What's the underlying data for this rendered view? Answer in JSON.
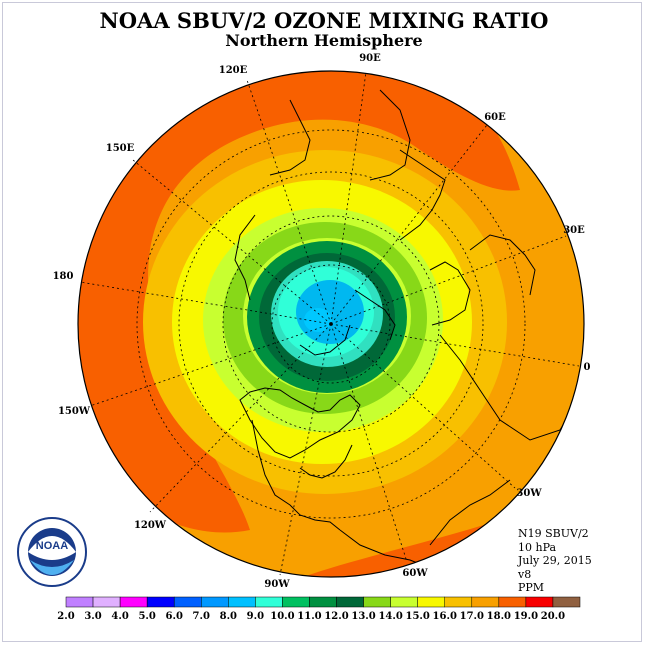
{
  "header": {
    "title": "NOAA SBUV/2 OZONE MIXING RATIO",
    "subtitle": "Northern Hemisphere"
  },
  "map": {
    "projection": "north polar stereographic",
    "longitude_labels": [
      {
        "label": "90E"
      },
      {
        "label": "60E"
      },
      {
        "label": "30E"
      },
      {
        "label": "0"
      },
      {
        "label": "30W"
      },
      {
        "label": "60W"
      },
      {
        "label": "90W"
      },
      {
        "label": "120W"
      },
      {
        "label": "150W"
      },
      {
        "label": "180"
      },
      {
        "label": "150E"
      },
      {
        "label": "120E"
      }
    ],
    "field_bands_ppm": [
      18,
      17,
      16,
      15,
      14,
      13,
      12,
      11,
      10,
      9,
      8
    ],
    "colors": {
      "8": "#00b8f0",
      "9": "#30ffd8",
      "10": "#30e0c0",
      "11": "#009040",
      "12": "#006838",
      "13": "#88d818",
      "14": "#c8ff30",
      "15": "#f8f800",
      "16": "#f8c000",
      "17": "#f8a000",
      "18": "#f86000"
    }
  },
  "info": {
    "line1": "N19 SBUV/2",
    "line2": "10 hPa",
    "line3": "July 29, 2015",
    "line4": "v8",
    "line5": "PPM"
  },
  "logo": {
    "text": "NOAA",
    "ring_text": "NATIONAL OCEANIC AND ATMOSPHERIC ADMINISTRATION · U.S. DEPARTMENT OF COMMERCE"
  },
  "legend": {
    "unit": "PPM",
    "ticks": [
      "2.0",
      "3.0",
      "4.0",
      "5.0",
      "6.0",
      "7.0",
      "8.0",
      "9.0",
      "10.0",
      "11.0",
      "12.0",
      "13.0",
      "14.0",
      "15.0",
      "16.0",
      "17.0",
      "18.0",
      "19.0",
      "20.0"
    ],
    "colors": [
      "#c080ff",
      "#e0b0ff",
      "#ff00ff",
      "#0000ff",
      "#0060ff",
      "#0098ff",
      "#00c0ff",
      "#30ffd8",
      "#00c060",
      "#009040",
      "#006838",
      "#88d818",
      "#c8ff30",
      "#f8f800",
      "#f8c000",
      "#f8a000",
      "#f86000",
      "#f80000",
      "#906040"
    ]
  }
}
